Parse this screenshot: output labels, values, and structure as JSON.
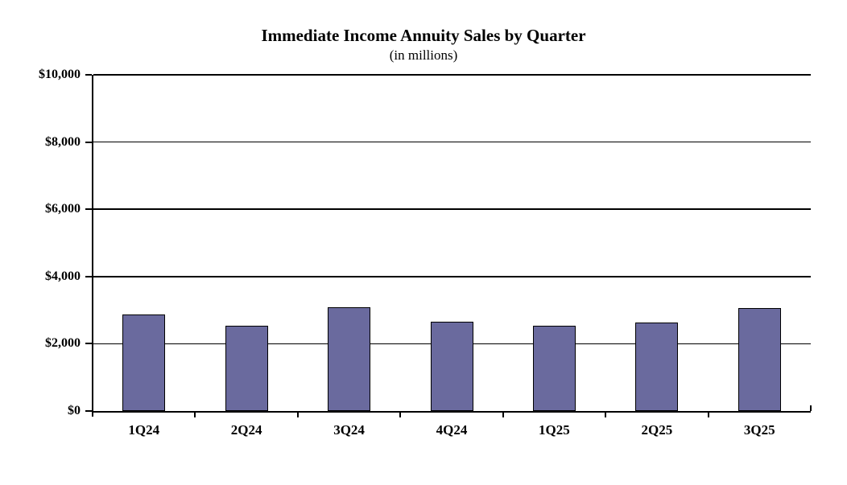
{
  "chart_data": {
    "type": "bar",
    "title": "Immediate Income Annuity Sales by Quarter",
    "subtitle": "(in millions)",
    "categories": [
      "1Q24",
      "2Q24",
      "3Q24",
      "4Q24",
      "1Q25",
      "2Q25",
      "3Q25"
    ],
    "values": [
      2880,
      2540,
      3090,
      2660,
      2530,
      2630,
      3060
    ],
    "xlabel": "",
    "ylabel": "",
    "ylim": [
      0,
      10000
    ],
    "y_tick_step": 2000,
    "y_tick_labels": [
      "$0",
      "$2,000",
      "$4,000",
      "$6,000",
      "$8,000",
      "$10,000"
    ],
    "grid": true,
    "legend": "none",
    "colors": {
      "bar_fill": "#6A6A9E",
      "bar_border": "#000000",
      "axis": "#000000",
      "gridline": "#000000",
      "background": "#FFFFFF",
      "text": "#000000"
    }
  }
}
